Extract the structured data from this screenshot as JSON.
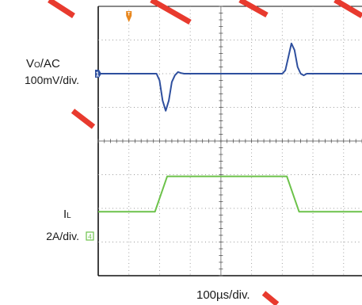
{
  "channels": {
    "vo": {
      "name_main": "V",
      "name_sub": "O",
      "name_suffix": "/AC",
      "scale": "100mV/div.",
      "marker": "1",
      "color": "#2e4f9e"
    },
    "il": {
      "name_main": "I",
      "name_sub": "L",
      "scale": "2A/div.",
      "marker": "4",
      "color": "#6cc24a"
    }
  },
  "time_scale": "100µs/div.",
  "trigger_marker": {
    "label": "T",
    "color": "#e8871e"
  },
  "watermark_color": "#e83a2e",
  "chart_data": {
    "type": "line",
    "x_unit": "div",
    "xlim": [
      0,
      8.6
    ],
    "ylim": [
      -4,
      4
    ],
    "grid": true,
    "series": [
      {
        "key": "vo",
        "x": [
          0,
          1.9,
          2.0,
          2.1,
          2.2,
          2.3,
          2.4,
          2.5,
          2.6,
          2.7,
          2.8,
          6.0,
          6.1,
          6.2,
          6.3,
          6.4,
          6.5,
          6.6,
          6.7,
          6.8,
          8.6
        ],
        "values": [
          2.0,
          2.0,
          1.8,
          1.2,
          0.9,
          1.2,
          1.75,
          1.95,
          2.05,
          2.02,
          2.0,
          2.0,
          2.1,
          2.5,
          2.9,
          2.7,
          2.2,
          2.0,
          1.95,
          2.0,
          2.0
        ]
      },
      {
        "key": "il",
        "x": [
          0,
          1.85,
          2.25,
          6.15,
          6.55,
          8.6
        ],
        "values": [
          -2.1,
          -2.1,
          -1.05,
          -1.05,
          -2.1,
          -2.1
        ]
      }
    ]
  }
}
